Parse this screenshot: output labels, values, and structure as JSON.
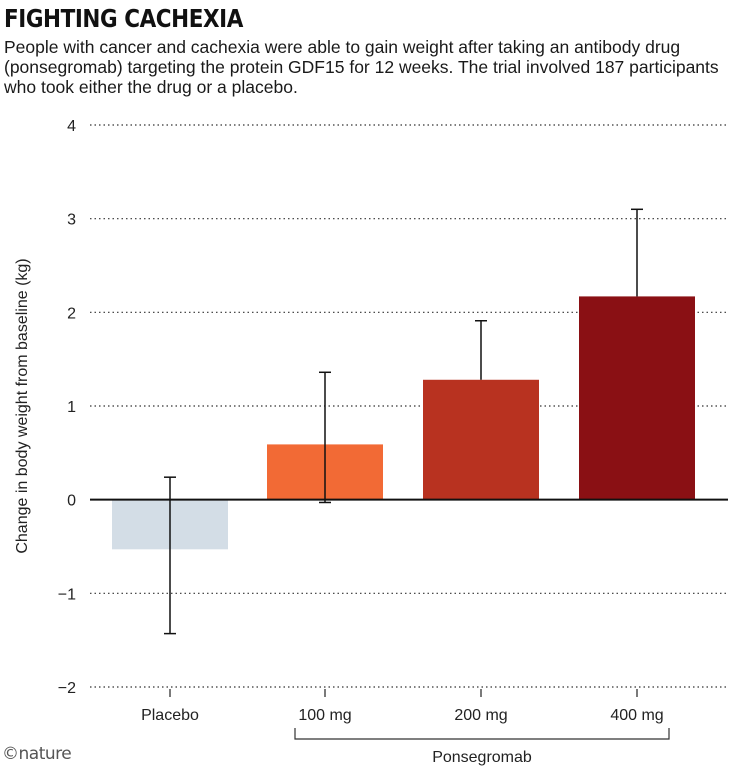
{
  "title": "FIGHTING CACHEXIA",
  "subtitle": "People with cancer and cachexia were able to gain weight after taking an antibody drug (ponsegromab) targeting the protein GDF15 for 12 weeks. The trial involved 187 participants who took either the drug or a placebo.",
  "logo": "©nature",
  "chart_data": {
    "type": "bar",
    "categories": [
      "Placebo",
      "100 mg",
      "200 mg",
      "400 mg"
    ],
    "values": [
      -0.53,
      0.59,
      1.28,
      2.17
    ],
    "error_upper": [
      0.24,
      1.36,
      1.91,
      3.1
    ],
    "error_lower": [
      -1.43,
      -0.03,
      1.28,
      2.17
    ],
    "colors": [
      "#d3dde6",
      "#f26a35",
      "#b83220",
      "#8a1014"
    ],
    "ylabel": "Change in body weight from baseline (kg)",
    "xlabel": "",
    "ylim": [
      -2,
      4
    ],
    "yticks": [
      4,
      3,
      2,
      1,
      0,
      -1,
      -2
    ],
    "ytick_labels": [
      "4",
      "3",
      "2",
      "1",
      "0",
      "−1",
      "−2"
    ],
    "grid": true,
    "group_label": "Ponsegromab"
  }
}
